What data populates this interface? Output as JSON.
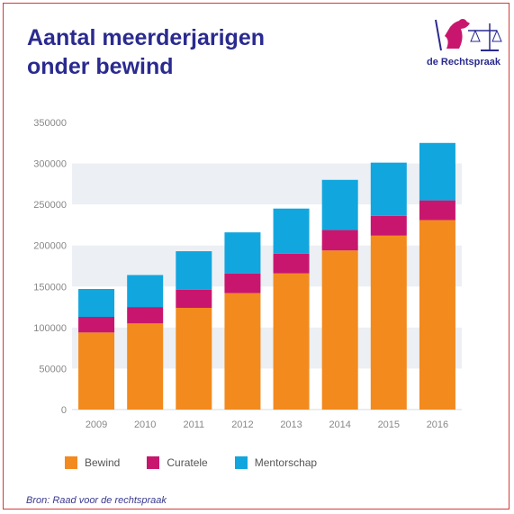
{
  "title": [
    "Aantal meerderjarigen",
    "onder bewind"
  ],
  "logo": {
    "text": "de Rechtspraak",
    "icon": "scales-of-justice-icon"
  },
  "source": "Bron: Raad voor de rechtspraak",
  "colors": {
    "title": "#2a2a8f",
    "Bewind": "#f28a1e",
    "Curatele": "#c8166e",
    "Mentorschap": "#12a6de",
    "band": "#eceff3",
    "frame": "#d23a3a"
  },
  "chart_data": {
    "type": "bar",
    "stacked": true,
    "categories": [
      "2009",
      "2010",
      "2011",
      "2012",
      "2013",
      "2014",
      "2015",
      "2016"
    ],
    "series": [
      {
        "name": "Bewind",
        "values": [
          94000,
          105000,
          124000,
          142000,
          166000,
          194000,
          212000,
          231000
        ]
      },
      {
        "name": "Curatele",
        "values": [
          19000,
          20000,
          22000,
          24000,
          24000,
          25000,
          24000,
          24000
        ]
      },
      {
        "name": "Mentorschap",
        "values": [
          34000,
          39000,
          47000,
          50000,
          55000,
          61000,
          65000,
          70000
        ]
      }
    ],
    "y_ticks": [
      "0",
      "50000",
      "100000",
      "150000",
      "200000",
      "250000",
      "300000",
      "350000"
    ],
    "ylim": [
      0,
      350000
    ],
    "grid": "alternating horizontal bands",
    "legend_position": "bottom"
  }
}
